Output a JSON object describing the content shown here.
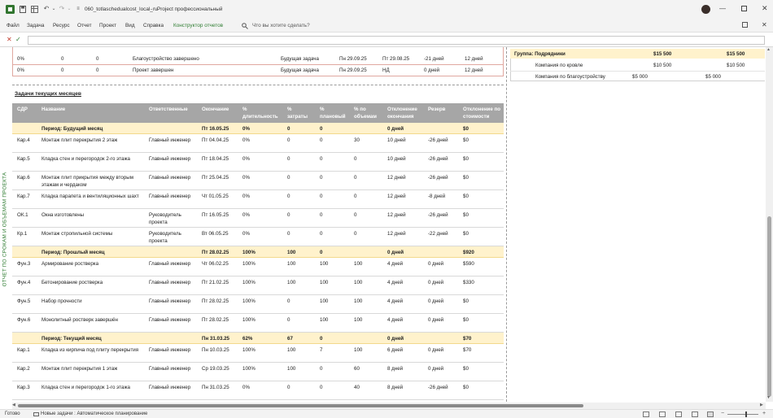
{
  "titlebar": {
    "filename": "060_totlaschedualcost_local_ru",
    "separator": "-",
    "app": "Project профессиональный",
    "undo_icon": "undo-icon",
    "redo_icon": "redo-icon"
  },
  "tabs": [
    "Файл",
    "Задача",
    "Ресурс",
    "Отчет",
    "Проект",
    "Вид",
    "Справка",
    "Конструктор отчетов"
  ],
  "search": {
    "placeholder": "Что вы хотите сделать?"
  },
  "entry": {
    "cancel": "✕",
    "confirm": "✓",
    "value": ""
  },
  "side_label": "ОТЧЕТ ПО СРОКАМ  И ОБЪЕМАМ ПРОЕКТА",
  "top_rows": [
    {
      "id": "0%",
      "c1": "0",
      "c2": "0",
      "name": "Благоустройство завершено",
      "type": "Будущая задача",
      "start": "Пн 29.09.25",
      "finish": "Пт 29.08.25",
      "var": "-21 дней",
      "dur": "12 дней"
    },
    {
      "id": "0%",
      "c1": "0",
      "c2": "0",
      "name": "Проект завершен",
      "type": "Будущая задача",
      "start": "Пн 29.09.25",
      "finish": "НД",
      "var": "0 дней",
      "dur": "12 дней"
    }
  ],
  "section_title": "Задачи текущих месяцев",
  "headers": [
    "СДР",
    "Название",
    "Ответственные",
    "Окончание",
    "% длительность",
    "% затраты",
    "% плановый",
    "% по объемам",
    "Отклонение окончания",
    "Резерв",
    "Отклонение по стоимости"
  ],
  "rows": [
    {
      "kind": "period",
      "wbs": "",
      "name": "Период: Будущий месяц",
      "owner": "",
      "finish": "Пт 16.05.25",
      "pdur": "0%",
      "pcost": "0",
      "pplan": "0",
      "pvol": "",
      "fvar": "0 дней",
      "slack": "",
      "cvar": "$0"
    },
    {
      "kind": "task",
      "wbs": "Кар.4",
      "name": "Монтаж плит перекрытия 2 этаж",
      "owner": "Главный инженер",
      "finish": "Пт 04.04.25",
      "pdur": "0%",
      "pcost": "0",
      "pplan": "0",
      "pvol": "30",
      "fvar": "10 дней",
      "slack": "-26 дней",
      "cvar": "$0"
    },
    {
      "kind": "task",
      "wbs": "Кар.5",
      "name": "Кладка стен и перегородок 2-го этажа",
      "owner": "Главный инженер",
      "finish": "Пт 18.04.25",
      "pdur": "0%",
      "pcost": "0",
      "pplan": "0",
      "pvol": "0",
      "fvar": "10 дней",
      "slack": "-26 дней",
      "cvar": "$0"
    },
    {
      "kind": "task",
      "wbs": "Кар.6",
      "name": "Монтаж плит прикрытия между вторым этажам и чердаком",
      "owner": "Главный инженер",
      "finish": "Пт 25.04.25",
      "pdur": "0%",
      "pcost": "0",
      "pplan": "0",
      "pvol": "0",
      "fvar": "12 дней",
      "slack": "-26 дней",
      "cvar": "$0"
    },
    {
      "kind": "task",
      "wbs": "Кар.7",
      "name": "Кладка парапета и вентиляционных шахт",
      "owner": "Главный инженер",
      "finish": "Чт 01.05.25",
      "pdur": "0%",
      "pcost": "0",
      "pplan": "0",
      "pvol": "0",
      "fvar": "12 дней",
      "slack": "-8 дней",
      "cvar": "$0"
    },
    {
      "kind": "task",
      "wbs": "ОК.1",
      "name": "Окна изготовлены",
      "owner": "Руководитель проекта",
      "finish": "Пт 16.05.25",
      "pdur": "0%",
      "pcost": "0",
      "pplan": "0",
      "pvol": "0",
      "fvar": "12 дней",
      "slack": "-26 дней",
      "cvar": "$0"
    },
    {
      "kind": "task",
      "wbs": "Кр.1",
      "name": "Монтаж стропильной системы",
      "owner": "Руководитель проекта",
      "finish": "Вт 06.05.25",
      "pdur": "0%",
      "pcost": "0",
      "pplan": "0",
      "pvol": "0",
      "fvar": "12 дней",
      "slack": "-22 дней",
      "cvar": "$0"
    },
    {
      "kind": "period",
      "wbs": "",
      "name": "Период: Прошлый месяц",
      "owner": "",
      "finish": "Пт 28.02.25",
      "pdur": "100%",
      "pcost": "100",
      "pplan": "0",
      "pvol": "",
      "fvar": "0 дней",
      "slack": "",
      "cvar": "$920"
    },
    {
      "kind": "task",
      "wbs": "Фун.3",
      "name": "Армирование ростверка",
      "owner": "Главный инженер",
      "finish": "Чт 06.02.25",
      "pdur": "100%",
      "pcost": "100",
      "pplan": "100",
      "pvol": "100",
      "fvar": "4 дней",
      "slack": "0 дней",
      "cvar": "$590"
    },
    {
      "kind": "task",
      "wbs": "Фун.4",
      "name": "Бетонирование ростверка",
      "owner": "Главный инженер",
      "finish": "Пт 21.02.25",
      "pdur": "100%",
      "pcost": "100",
      "pplan": "100",
      "pvol": "100",
      "fvar": "4 дней",
      "slack": "0 дней",
      "cvar": "$330"
    },
    {
      "kind": "task",
      "wbs": "Фун.5",
      "name": "Набор прочности",
      "owner": "Главный инженер",
      "finish": "Пт 28.02.25",
      "pdur": "100%",
      "pcost": "0",
      "pplan": "100",
      "pvol": "100",
      "fvar": "4 дней",
      "slack": "0 дней",
      "cvar": "$0"
    },
    {
      "kind": "task",
      "wbs": "Фун.6",
      "name": "Монолитный ростверк завершён",
      "owner": "Главный инженер",
      "finish": "Пт 28.02.25",
      "pdur": "100%",
      "pcost": "0",
      "pplan": "100",
      "pvol": "100",
      "fvar": "4 дней",
      "slack": "0 дней",
      "cvar": "$0"
    },
    {
      "kind": "period",
      "wbs": "",
      "name": "Период: Текущий месяц",
      "owner": "",
      "finish": "Пн 31.03.25",
      "pdur": "62%",
      "pcost": "67",
      "pplan": "0",
      "pvol": "",
      "fvar": "0 дней",
      "slack": "",
      "cvar": "$70"
    },
    {
      "kind": "task",
      "wbs": "Кар.1",
      "name": "Кладка из кирпича под плиту перекрытия",
      "owner": "Главный инженер",
      "finish": "Пн 10.03.25",
      "pdur": "100%",
      "pcost": "100",
      "pplan": "7",
      "pvol": "100",
      "fvar": "6 дней",
      "slack": "0 дней",
      "cvar": "$70"
    },
    {
      "kind": "task",
      "wbs": "Кар.2",
      "name": "Монтаж плит перекрытия 1 этаж",
      "owner": "Главный инженер",
      "finish": "Ср 19.03.25",
      "pdur": "100%",
      "pcost": "100",
      "pplan": "0",
      "pvol": "60",
      "fvar": "8 дней",
      "slack": "0 дней",
      "cvar": "$0"
    },
    {
      "kind": "task",
      "wbs": "Кар.3",
      "name": "Кладка стен и перегородок 1-го этажа",
      "owner": "Главный инженер",
      "finish": "Пн 31.03.25",
      "pdur": "0%",
      "pcost": "0",
      "pplan": "0",
      "pvol": "40",
      "fvar": "8 дней",
      "slack": "-26 дней",
      "cvar": "$0"
    }
  ],
  "right_panel": {
    "group_label": "Группа: Подрядники",
    "group_v1": "$15 500",
    "group_v2": "$15 500",
    "items": [
      {
        "name": "Компания по кровле",
        "a": "",
        "b": "$10 500",
        "c": "",
        "d": "$10 500"
      },
      {
        "name": "Компания по благоустройству",
        "a": "$5 000",
        "b": "",
        "c": "$5 000",
        "d": ""
      }
    ]
  },
  "status": {
    "ready": "Готово",
    "new_tasks": "Новые задачи : Автоматическое планирование"
  },
  "colors": {
    "period_bg": "#fff2cc",
    "header_bg": "#a6a6a6",
    "side_label": "#2f7d32",
    "tab_accent": "#2f7d32"
  }
}
